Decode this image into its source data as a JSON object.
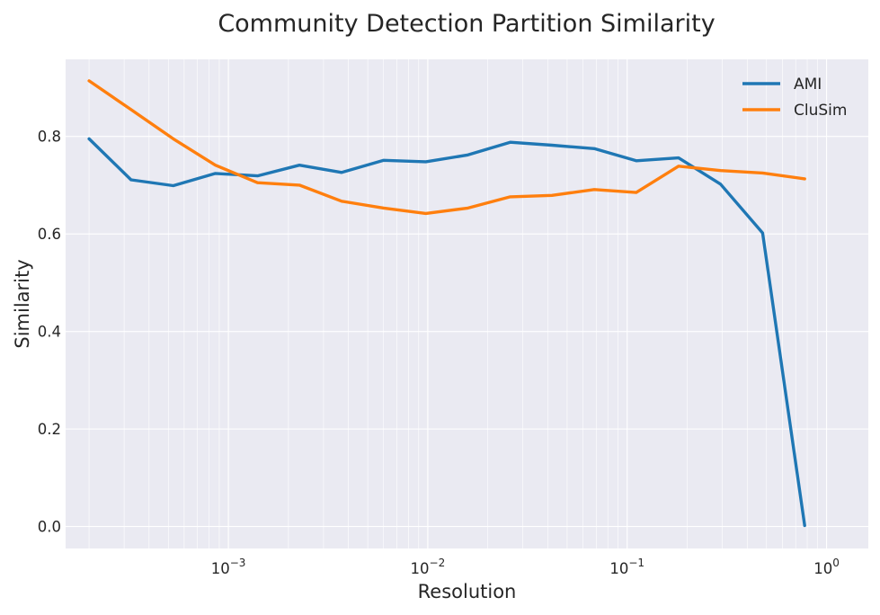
{
  "chart_data": {
    "type": "line",
    "title": "Community Detection Partition Similarity",
    "xlabel": "Resolution",
    "ylabel": "Similarity",
    "x_scale": "log",
    "xlim": [
      0.0001526,
      1.62
    ],
    "ylim": [
      -0.045,
      0.958
    ],
    "grid": true,
    "legend_position": "top-right",
    "x": [
      0.0002,
      0.000325,
      0.000529,
      0.00086,
      0.0014,
      0.00227,
      0.0037,
      0.00601,
      0.00977,
      0.0159,
      0.0259,
      0.042,
      0.0684,
      0.111,
      0.181,
      0.294,
      0.478,
      0.777
    ],
    "series": [
      {
        "name": "AMI",
        "color": "#1f77b4",
        "values": [
          0.795,
          0.711,
          0.699,
          0.724,
          0.719,
          0.741,
          0.726,
          0.751,
          0.748,
          0.762,
          0.788,
          0.782,
          0.775,
          0.75,
          0.756,
          0.702,
          0.602,
          0.002
        ]
      },
      {
        "name": "CluSim",
        "color": "#ff7f0e",
        "values": [
          0.914,
          0.855,
          0.795,
          0.741,
          0.705,
          0.7,
          0.667,
          0.653,
          0.642,
          0.653,
          0.676,
          0.679,
          0.691,
          0.685,
          0.739,
          0.73,
          0.725,
          0.713
        ]
      }
    ],
    "yticks": [
      {
        "value": 0.0,
        "label": "0.0"
      },
      {
        "value": 0.2,
        "label": "0.2"
      },
      {
        "value": 0.4,
        "label": "0.4"
      },
      {
        "value": 0.6,
        "label": "0.6"
      },
      {
        "value": 0.8,
        "label": "0.8"
      }
    ],
    "xticks": [
      {
        "value": 0.001,
        "base": "10",
        "exp": "−3"
      },
      {
        "value": 0.01,
        "base": "10",
        "exp": "−2"
      },
      {
        "value": 0.1,
        "base": "10",
        "exp": "−1"
      },
      {
        "value": 1,
        "base": "10",
        "exp": "0"
      }
    ]
  },
  "style": {
    "plot_background": "#eaeaf2",
    "grid_color": "#ffffff"
  }
}
